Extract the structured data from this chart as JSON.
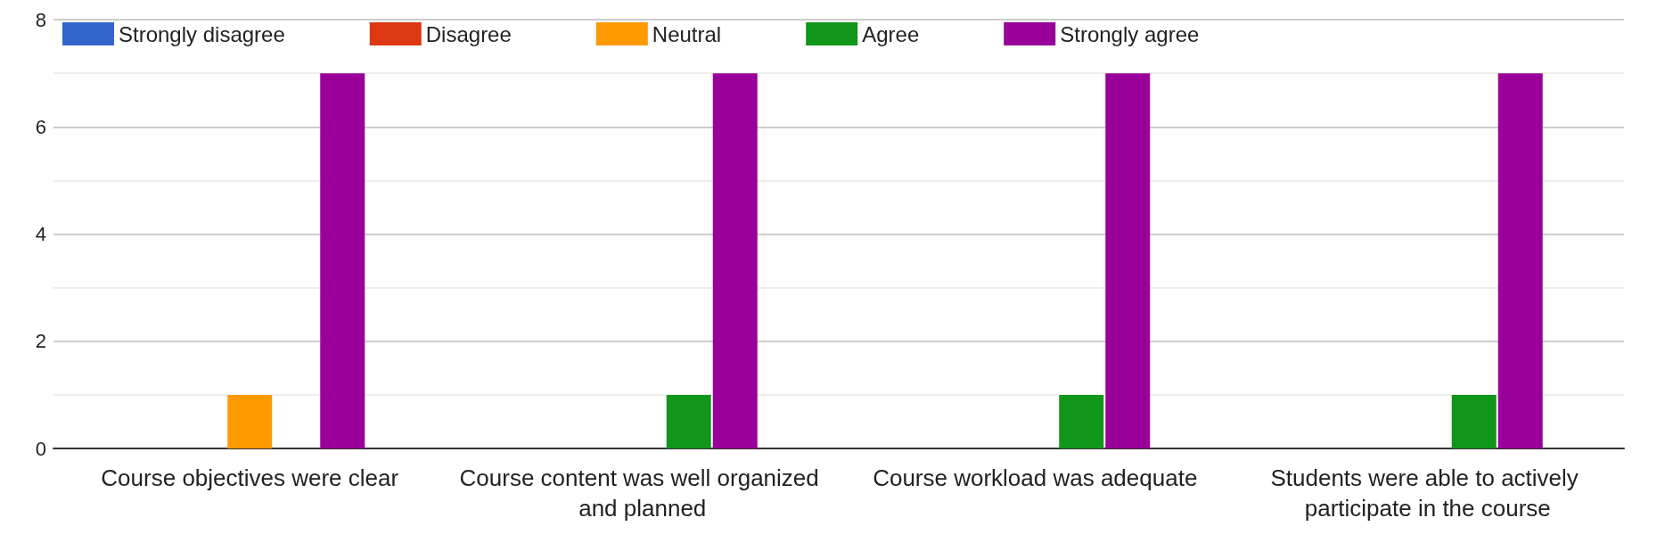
{
  "chart_data": {
    "type": "bar",
    "categories": [
      "Course objectives were clear",
      "Course content was well organized and planned",
      "Course workload was adequate",
      "Students were able to actively participate in the course"
    ],
    "series": [
      {
        "name": "Strongly disagree",
        "color": "#3366cc",
        "values": [
          0,
          0,
          0,
          0
        ]
      },
      {
        "name": "Disagree",
        "color": "#dc3912",
        "values": [
          0,
          0,
          0,
          0
        ]
      },
      {
        "name": "Neutral",
        "color": "#ff9900",
        "values": [
          1,
          0,
          0,
          0
        ]
      },
      {
        "name": "Agree",
        "color": "#109618",
        "values": [
          0,
          1,
          1,
          1
        ]
      },
      {
        "name": "Strongly agree",
        "color": "#990099",
        "values": [
          7,
          7,
          7,
          7
        ]
      }
    ],
    "ylim": [
      0,
      8
    ],
    "yticks": [
      0,
      2,
      4,
      6,
      8
    ],
    "grid": "y",
    "legend": "top"
  }
}
